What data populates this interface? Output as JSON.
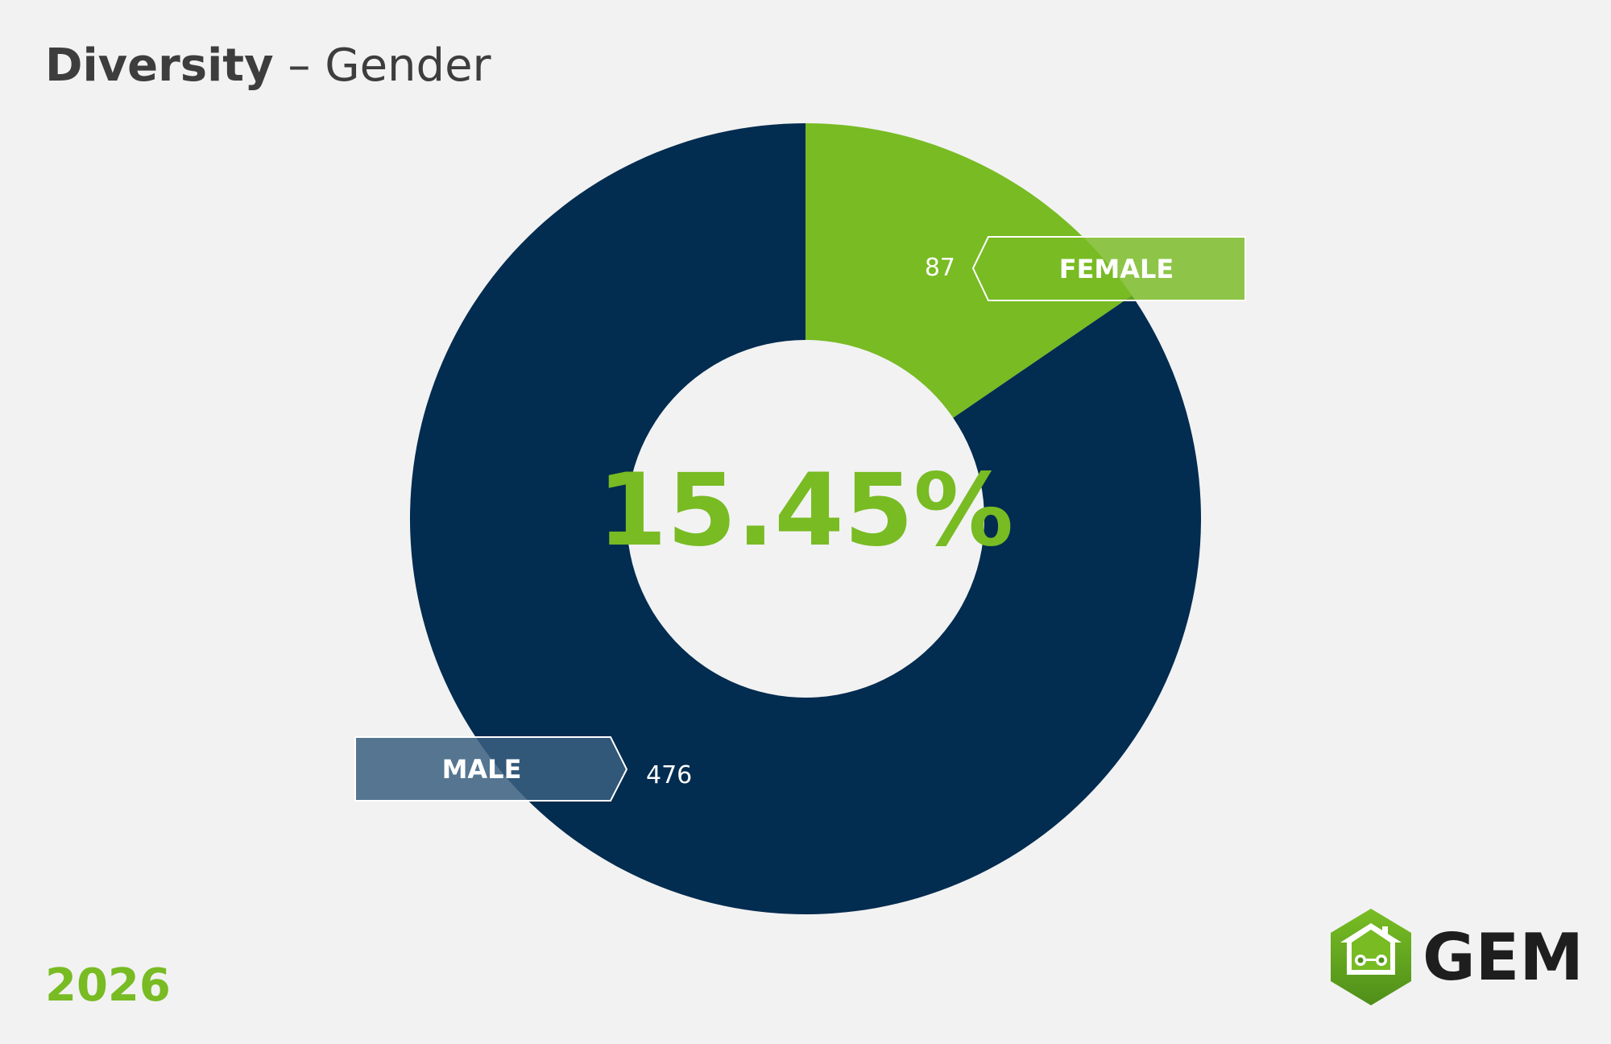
{
  "title": {
    "bold": "Diversity",
    "separator": " – ",
    "light": "Gender"
  },
  "year": "2026",
  "logo": {
    "text": "GEM",
    "icon": "house-hexagon-icon"
  },
  "colors": {
    "male": "#022c50",
    "female": "#78bb23",
    "background": "#f2f2f2",
    "title": "#3d3d3d",
    "logo_text": "#1e1e1e"
  },
  "chart_data": {
    "type": "pie",
    "donut": true,
    "center_label": "15.45%",
    "series": [
      {
        "name": "FEMALE",
        "value": 87
      },
      {
        "name": "MALE",
        "value": 476
      }
    ],
    "labels": {
      "female": {
        "name": "FEMALE",
        "value": "87"
      },
      "male": {
        "name": "MALE",
        "value": "476"
      }
    }
  }
}
